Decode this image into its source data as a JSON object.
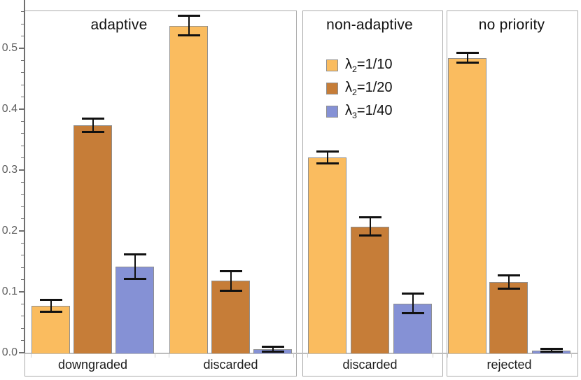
{
  "chart_data": {
    "type": "bar",
    "title": "",
    "xlabel": "",
    "ylabel": "",
    "ylim": [
      0,
      0.58
    ],
    "grid": false,
    "y_ticks": [
      "0.0",
      "0.1",
      "0.2",
      "0.3",
      "0.4",
      "0.5"
    ],
    "y_minor_tick_step": 0.02,
    "legend_position": "inside non-adaptive panel, top center",
    "legend": [
      {
        "label": "λ2=1/10",
        "symbol": "λ",
        "subscript": "2",
        "value_text": "=1/10",
        "color": "#FABC5F"
      },
      {
        "label": "λ2=1/20",
        "symbol": "λ",
        "subscript": "2",
        "value_text": "=1/20",
        "color": "#C67D38"
      },
      {
        "label": "λ3=1/40",
        "symbol": "λ",
        "subscript": "3",
        "value_text": "=1/40",
        "color": "#8591D5"
      }
    ],
    "panels": [
      {
        "title": "adaptive",
        "groups": [
          {
            "label": "downgraded",
            "bars": [
              {
                "series": "λ2=1/10",
                "value": 0.077,
                "error": 0.01
              },
              {
                "series": "λ2=1/20",
                "value": 0.374,
                "error": 0.011
              },
              {
                "series": "λ3=1/40",
                "value": 0.141,
                "error": 0.02
              }
            ]
          },
          {
            "label": "discarded",
            "bars": [
              {
                "series": "λ2=1/10",
                "value": 0.537,
                "error": 0.016
              },
              {
                "series": "λ2=1/20",
                "value": 0.118,
                "error": 0.016
              },
              {
                "series": "λ3=1/40",
                "value": 0.006,
                "error": 0.004
              }
            ]
          }
        ]
      },
      {
        "title": "non-adaptive",
        "groups": [
          {
            "label": "discarded",
            "bars": [
              {
                "series": "λ2=1/10",
                "value": 0.321,
                "error": 0.01
              },
              {
                "series": "λ2=1/20",
                "value": 0.207,
                "error": 0.015
              },
              {
                "series": "λ3=1/40",
                "value": 0.081,
                "error": 0.016
              }
            ]
          }
        ]
      },
      {
        "title": "no priority",
        "groups": [
          {
            "label": "rejected",
            "bars": [
              {
                "series": "λ2=1/10",
                "value": 0.484,
                "error": 0.008
              },
              {
                "series": "λ2=1/20",
                "value": 0.116,
                "error": 0.011
              },
              {
                "series": "λ3=1/40",
                "value": 0.004,
                "error": 0.002
              }
            ]
          }
        ]
      }
    ],
    "colors": {
      "bar_edge": "#8f8f8f",
      "frame": "#ababab",
      "axis": "#6f6f6f",
      "baseline": "#bdbdbd",
      "x_group_tick": "#cfcfcf",
      "error_bar": "#111111",
      "tick_label": "#5f5f5f",
      "category_label": "#1c1c1c",
      "title": "#101010",
      "background": "#ffffff"
    }
  }
}
